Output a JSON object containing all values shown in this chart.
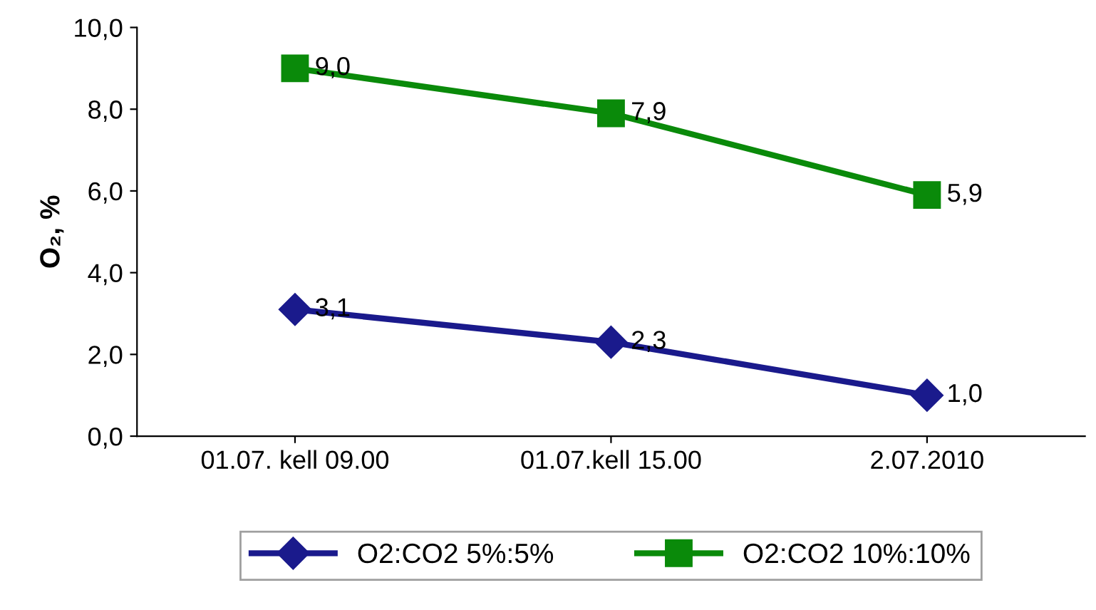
{
  "chart_data": {
    "type": "line",
    "ylabel": "O₂, %",
    "categories": [
      "01.07. kell 09.00",
      "01.07.kell 15.00",
      "2.07.2010"
    ],
    "series": [
      {
        "name": "O2:CO2 5%:5%",
        "color": "#1a1a8c",
        "marker": "diamond",
        "values": [
          3.1,
          2.3,
          1.0
        ],
        "value_labels": [
          "3,1",
          "2,3",
          "1,0"
        ]
      },
      {
        "name": "O2:CO2 10%:10%",
        "color": "#0a8a0a",
        "marker": "square",
        "values": [
          9.0,
          7.9,
          5.9
        ],
        "value_labels": [
          "9,0",
          "7,9",
          "5,9"
        ]
      }
    ],
    "ylim": [
      0,
      10
    ],
    "yticks": [
      {
        "value": 0,
        "label": "0,0"
      },
      {
        "value": 2,
        "label": "2,0"
      },
      {
        "value": 4,
        "label": "4,0"
      },
      {
        "value": 6,
        "label": "6,0"
      },
      {
        "value": 8,
        "label": "8,0"
      },
      {
        "value": 10,
        "label": "10,0"
      }
    ],
    "grid": false,
    "legend": "bottom",
    "line_style": "solid"
  }
}
